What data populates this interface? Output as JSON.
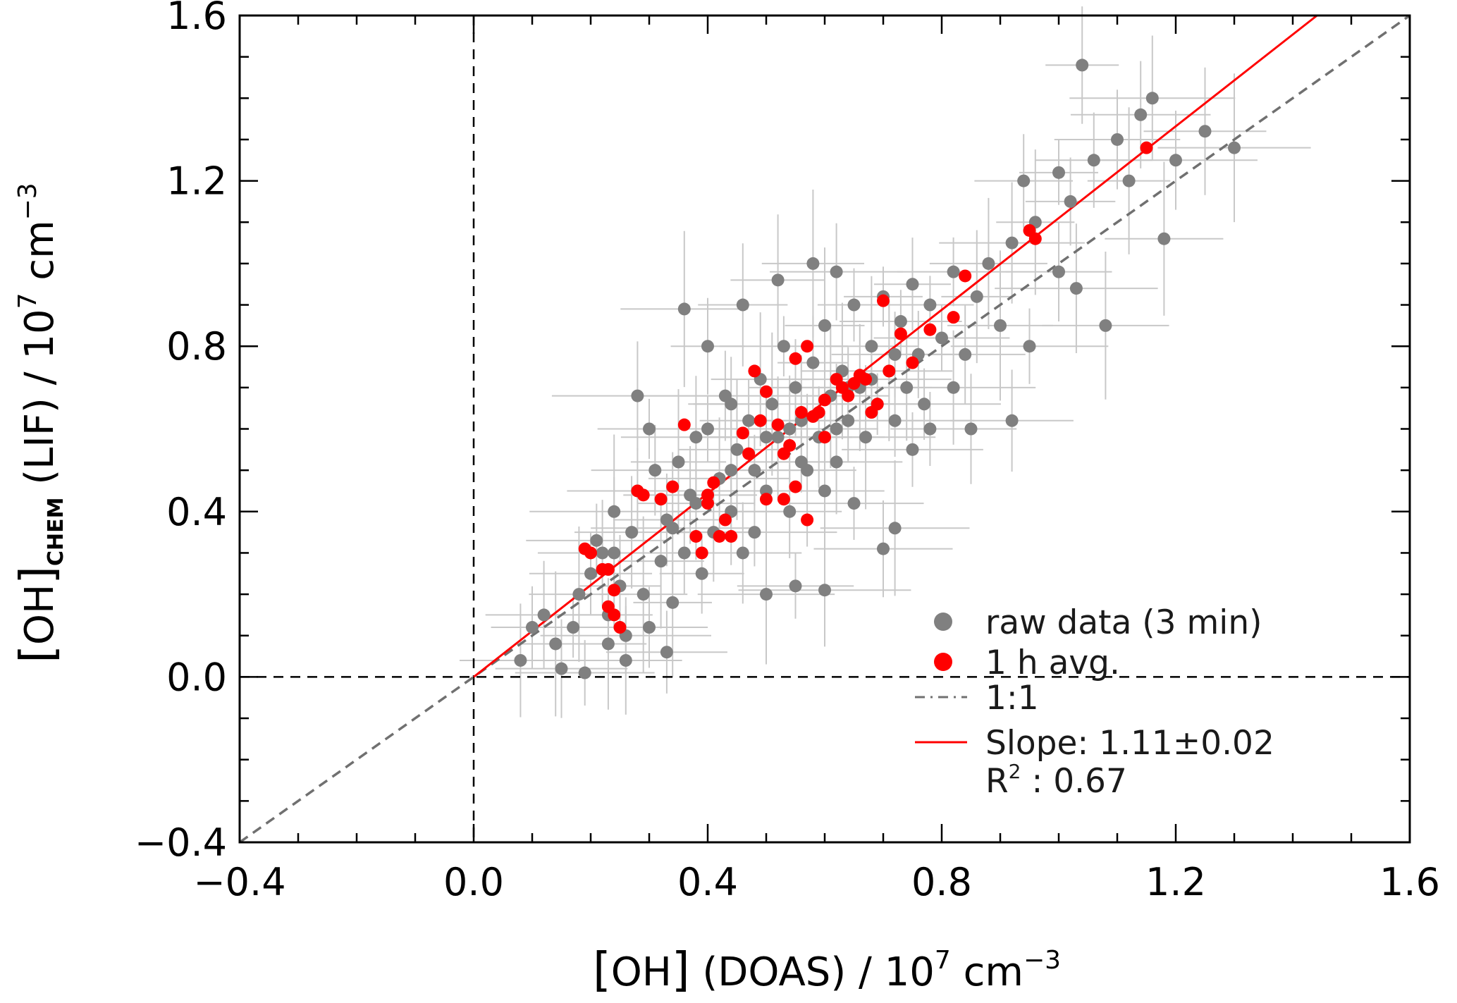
{
  "chart_data": {
    "type": "scatter",
    "xlabel_parts": {
      "bracket_open": "[",
      "species": "OH",
      "bracket_close": "]",
      "instrument": " (DOAS)  /  10",
      "exponent_base": "7",
      "unit": " cm",
      "unit_exponent": "−3"
    },
    "ylabel_parts": {
      "bracket_open": "[",
      "species": "OH",
      "bracket_close": "]",
      "subscript": "CHEM",
      "instrument": "  (LIF)  /  10",
      "exponent_base": "7",
      "unit": " cm",
      "unit_exponent": "−3"
    },
    "xlim": [
      -0.4,
      1.6
    ],
    "ylim": [
      -0.4,
      1.6
    ],
    "xticks": [
      "−0.4",
      "0.0",
      "0.4",
      "0.8",
      "1.2",
      "1.6"
    ],
    "yticks": [
      "−0.4",
      "0.0",
      "0.4",
      "0.8",
      "1.2",
      "1.6"
    ],
    "xtick_values": [
      -0.4,
      0.0,
      0.4,
      0.8,
      1.2,
      1.6
    ],
    "ytick_values": [
      -0.4,
      0.0,
      0.4,
      0.8,
      1.2,
      1.6
    ],
    "grid": false,
    "legend_position": "bottom-right",
    "legend": {
      "raw": "raw data (3 min)",
      "avg": "1 h avg.",
      "one_to_one": "1:1",
      "slope": "Slope: 1.11±0.02",
      "r2_prefix": "R",
      "r2_exponent": "2",
      "r2_suffix": " : 0.67"
    },
    "fit": {
      "slope": 1.11,
      "intercept": 0.0
    },
    "one_to_one": {
      "slope": 1.0
    },
    "colors": {
      "raw": "#808080",
      "avg": "#ff0000",
      "errorbar": "#c8c8c8",
      "fit": "#ff0000",
      "one_to_one": "#707070",
      "zero_lines": "#000000"
    },
    "series": [
      {
        "name": "raw data (3 min)",
        "points": [
          [
            0.08,
            0.04
          ],
          [
            0.1,
            0.12
          ],
          [
            0.12,
            0.15
          ],
          [
            0.14,
            0.08
          ],
          [
            0.15,
            0.02
          ],
          [
            0.18,
            0.2
          ],
          [
            0.19,
            0.01
          ],
          [
            0.2,
            0.25
          ],
          [
            0.21,
            0.33
          ],
          [
            0.22,
            0.3
          ],
          [
            0.23,
            0.15
          ],
          [
            0.24,
            0.4
          ],
          [
            0.25,
            0.22
          ],
          [
            0.26,
            0.1
          ],
          [
            0.27,
            0.35
          ],
          [
            0.28,
            0.45
          ],
          [
            0.29,
            0.2
          ],
          [
            0.3,
            0.12
          ],
          [
            0.31,
            0.5
          ],
          [
            0.32,
            0.28
          ],
          [
            0.33,
            0.38
          ],
          [
            0.34,
            0.18
          ],
          [
            0.35,
            0.52
          ],
          [
            0.36,
            0.3
          ],
          [
            0.37,
            0.44
          ],
          [
            0.38,
            0.58
          ],
          [
            0.39,
            0.25
          ],
          [
            0.4,
            0.6
          ],
          [
            0.41,
            0.35
          ],
          [
            0.42,
            0.48
          ],
          [
            0.43,
            0.68
          ],
          [
            0.44,
            0.4
          ],
          [
            0.45,
            0.55
          ],
          [
            0.46,
            0.3
          ],
          [
            0.47,
            0.62
          ],
          [
            0.48,
            0.5
          ],
          [
            0.49,
            0.72
          ],
          [
            0.5,
            0.45
          ],
          [
            0.51,
            0.66
          ],
          [
            0.52,
            0.58
          ],
          [
            0.53,
            0.8
          ],
          [
            0.54,
            0.4
          ],
          [
            0.55,
            0.7
          ],
          [
            0.56,
            0.62
          ],
          [
            0.57,
            0.5
          ],
          [
            0.58,
            0.76
          ],
          [
            0.59,
            0.58
          ],
          [
            0.6,
            0.85
          ],
          [
            0.61,
            0.68
          ],
          [
            0.62,
            0.52
          ],
          [
            0.63,
            0.74
          ],
          [
            0.64,
            0.62
          ],
          [
            0.65,
            0.9
          ],
          [
            0.66,
            0.7
          ],
          [
            0.67,
            0.58
          ],
          [
            0.68,
            0.8
          ],
          [
            0.69,
            0.66
          ],
          [
            0.7,
            0.92
          ],
          [
            0.71,
            0.74
          ],
          [
            0.72,
            0.62
          ],
          [
            0.73,
            0.86
          ],
          [
            0.74,
            0.7
          ],
          [
            0.75,
            0.95
          ],
          [
            0.76,
            0.78
          ],
          [
            0.77,
            0.66
          ],
          [
            0.78,
            0.9
          ],
          [
            0.8,
            0.82
          ],
          [
            0.82,
            0.98
          ],
          [
            0.84,
            0.78
          ],
          [
            0.86,
            0.92
          ],
          [
            0.88,
            1.0
          ],
          [
            0.9,
            0.85
          ],
          [
            0.92,
            1.05
          ],
          [
            0.94,
            1.2
          ],
          [
            0.96,
            1.1
          ],
          [
            1.0,
            1.22
          ],
          [
            1.02,
            1.15
          ],
          [
            1.04,
            1.48
          ],
          [
            1.06,
            1.25
          ],
          [
            1.08,
            0.85
          ],
          [
            1.1,
            1.3
          ],
          [
            1.12,
            1.2
          ],
          [
            1.14,
            1.36
          ],
          [
            1.16,
            1.4
          ],
          [
            1.18,
            1.06
          ],
          [
            1.2,
            1.25
          ],
          [
            1.25,
            1.32
          ],
          [
            1.3,
            1.28
          ],
          [
            0.36,
            0.89
          ],
          [
            0.5,
            0.2
          ],
          [
            0.55,
            0.22
          ],
          [
            0.6,
            0.21
          ],
          [
            0.7,
            0.31
          ],
          [
            0.72,
            0.36
          ],
          [
            0.92,
            0.62
          ],
          [
            1.03,
            0.94
          ],
          [
            0.44,
            0.66
          ],
          [
            0.6,
            0.45
          ],
          [
            0.65,
            0.42
          ],
          [
            0.75,
            0.55
          ],
          [
            0.85,
            0.6
          ],
          [
            0.3,
            0.6
          ],
          [
            0.28,
            0.68
          ],
          [
            0.4,
            0.8
          ],
          [
            0.46,
            0.9
          ],
          [
            0.52,
            0.96
          ],
          [
            0.58,
            1.0
          ],
          [
            0.62,
            0.98
          ],
          [
            0.95,
            0.8
          ],
          [
            1.0,
            0.98
          ],
          [
            0.82,
            0.7
          ],
          [
            0.78,
            0.6
          ],
          [
            0.33,
            0.06
          ],
          [
            0.26,
            0.04
          ],
          [
            0.17,
            0.12
          ],
          [
            0.23,
            0.08
          ],
          [
            0.38,
            0.42
          ],
          [
            0.48,
            0.35
          ],
          [
            0.5,
            0.58
          ],
          [
            0.56,
            0.52
          ],
          [
            0.62,
            0.6
          ],
          [
            0.68,
            0.72
          ],
          [
            0.72,
            0.78
          ],
          [
            0.64,
            0.7
          ],
          [
            0.54,
            0.6
          ],
          [
            0.44,
            0.5
          ],
          [
            0.34,
            0.36
          ],
          [
            0.24,
            0.3
          ]
        ]
      },
      {
        "name": "1 h avg.",
        "points": [
          [
            0.19,
            0.31
          ],
          [
            0.2,
            0.3
          ],
          [
            0.22,
            0.26
          ],
          [
            0.23,
            0.26
          ],
          [
            0.23,
            0.17
          ],
          [
            0.24,
            0.15
          ],
          [
            0.24,
            0.21
          ],
          [
            0.25,
            0.12
          ],
          [
            0.28,
            0.45
          ],
          [
            0.29,
            0.44
          ],
          [
            0.32,
            0.43
          ],
          [
            0.34,
            0.46
          ],
          [
            0.36,
            0.61
          ],
          [
            0.38,
            0.34
          ],
          [
            0.39,
            0.3
          ],
          [
            0.4,
            0.42
          ],
          [
            0.4,
            0.44
          ],
          [
            0.41,
            0.47
          ],
          [
            0.42,
            0.34
          ],
          [
            0.43,
            0.38
          ],
          [
            0.44,
            0.34
          ],
          [
            0.46,
            0.59
          ],
          [
            0.47,
            0.54
          ],
          [
            0.48,
            0.74
          ],
          [
            0.49,
            0.62
          ],
          [
            0.5,
            0.43
          ],
          [
            0.5,
            0.69
          ],
          [
            0.52,
            0.61
          ],
          [
            0.53,
            0.54
          ],
          [
            0.53,
            0.43
          ],
          [
            0.54,
            0.56
          ],
          [
            0.55,
            0.46
          ],
          [
            0.55,
            0.77
          ],
          [
            0.56,
            0.64
          ],
          [
            0.57,
            0.38
          ],
          [
            0.57,
            0.8
          ],
          [
            0.58,
            0.63
          ],
          [
            0.59,
            0.64
          ],
          [
            0.6,
            0.67
          ],
          [
            0.6,
            0.58
          ],
          [
            0.62,
            0.72
          ],
          [
            0.63,
            0.7
          ],
          [
            0.64,
            0.68
          ],
          [
            0.65,
            0.71
          ],
          [
            0.66,
            0.73
          ],
          [
            0.67,
            0.72
          ],
          [
            0.68,
            0.64
          ],
          [
            0.69,
            0.66
          ],
          [
            0.7,
            0.91
          ],
          [
            0.71,
            0.74
          ],
          [
            0.73,
            0.83
          ],
          [
            0.75,
            0.76
          ],
          [
            0.78,
            0.84
          ],
          [
            0.82,
            0.87
          ],
          [
            0.84,
            0.97
          ],
          [
            0.95,
            1.08
          ],
          [
            0.96,
            1.06
          ],
          [
            1.15,
            1.28
          ]
        ]
      }
    ]
  }
}
